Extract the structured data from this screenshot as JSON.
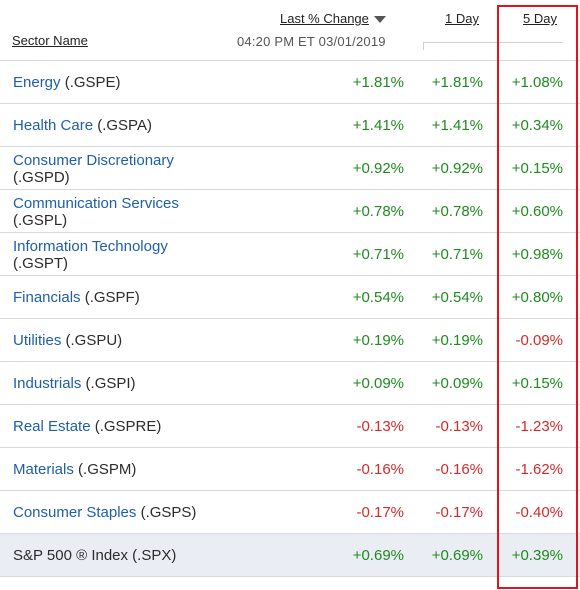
{
  "header": {
    "sector_label": "Sector Name",
    "last_change_label": "Last % Change",
    "one_day_label": "1 Day",
    "five_day_label": "5 Day",
    "timestamp": "04:20 PM ET 03/01/2019"
  },
  "rows": [
    {
      "name": "Energy",
      "suffix": " (.GSPE)",
      "last": "+1.81%",
      "d1": "+1.81%",
      "d5": "+1.08%"
    },
    {
      "name": "Health Care",
      "suffix": " (.GSPA)",
      "last": "+1.41%",
      "d1": "+1.41%",
      "d5": "+0.34%"
    },
    {
      "name": "Consumer Discretionary",
      "suffix": "(.GSPD)",
      "last": "+0.92%",
      "d1": "+0.92%",
      "d5": "+0.15%"
    },
    {
      "name": "Communication Services",
      "suffix": "(.GSPL)",
      "last": "+0.78%",
      "d1": "+0.78%",
      "d5": "+0.60%"
    },
    {
      "name": "Information Technology",
      "suffix": "(.GSPT)",
      "last": "+0.71%",
      "d1": "+0.71%",
      "d5": "+0.98%"
    },
    {
      "name": "Financials",
      "suffix": " (.GSPF)",
      "last": "+0.54%",
      "d1": "+0.54%",
      "d5": "+0.80%"
    },
    {
      "name": "Utilities",
      "suffix": " (.GSPU)",
      "last": "+0.19%",
      "d1": "+0.19%",
      "d5": "-0.09%"
    },
    {
      "name": "Industrials",
      "suffix": " (.GSPI)",
      "last": "+0.09%",
      "d1": "+0.09%",
      "d5": "+0.15%"
    },
    {
      "name": "Real Estate",
      "suffix": " (.GSPRE)",
      "last": "-0.13%",
      "d1": "-0.13%",
      "d5": "-1.23%"
    },
    {
      "name": "Materials",
      "suffix": " (.GSPM)",
      "last": "-0.16%",
      "d1": "-0.16%",
      "d5": "-1.62%"
    },
    {
      "name": "Consumer Staples",
      "suffix": " (.GSPS)",
      "last": "-0.17%",
      "d1": "-0.17%",
      "d5": "-0.40%"
    }
  ],
  "total": {
    "name": "S&P 500 ® Index (.SPX)",
    "last": "+0.69%",
    "d1": "+0.69%",
    "d5": "+0.39%"
  },
  "colors": {
    "positive": "#1f8a1f",
    "negative": "#d22a2a",
    "link": "#1f5fa8",
    "highlight_box": "#e0141b"
  }
}
